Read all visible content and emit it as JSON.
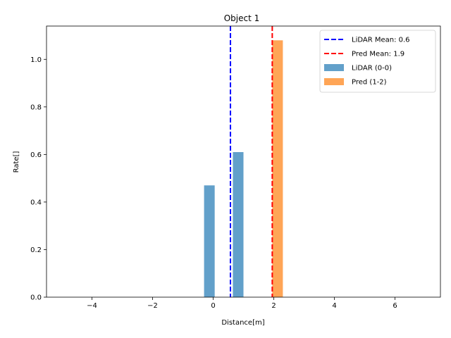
{
  "chart_data": {
    "type": "bar",
    "title": "Object 1",
    "xlabel": "Distance[m]",
    "ylabel": "Rate[]",
    "xlim": [
      -5.5,
      7.5
    ],
    "ylim": [
      0,
      1.14
    ],
    "xticks": [
      -4,
      -2,
      0,
      2,
      4,
      6
    ],
    "xtick_labels": [
      "−4",
      "−2",
      "0",
      "2",
      "4",
      "6"
    ],
    "yticks": [
      0.0,
      0.2,
      0.4,
      0.6,
      0.8,
      1.0
    ],
    "ytick_labels": [
      "0.0",
      "0.2",
      "0.4",
      "0.6",
      "0.8",
      "1.0"
    ],
    "grid": false,
    "legend_position": "top-right",
    "series": [
      {
        "name": "LiDAR (0-0)",
        "color": "#1f77b4",
        "opacity": 0.7,
        "bins": [
          {
            "x0": -0.3,
            "x1": 0.05,
            "value": 0.47
          },
          {
            "x0": 0.65,
            "x1": 1.0,
            "value": 0.61
          }
        ]
      },
      {
        "name": "Pred (1-2)",
        "color": "#ff7f0e",
        "opacity": 0.7,
        "bins": [
          {
            "x0": 1.95,
            "x1": 2.3,
            "value": 1.08
          }
        ]
      }
    ],
    "reference_lines": [
      {
        "name": "LiDAR Mean: 0.6",
        "x": 0.57,
        "color": "#0000ff",
        "style": "dashed"
      },
      {
        "name": "Pred Mean: 1.9",
        "x": 1.95,
        "color": "#ff0000",
        "style": "dashed"
      }
    ]
  }
}
